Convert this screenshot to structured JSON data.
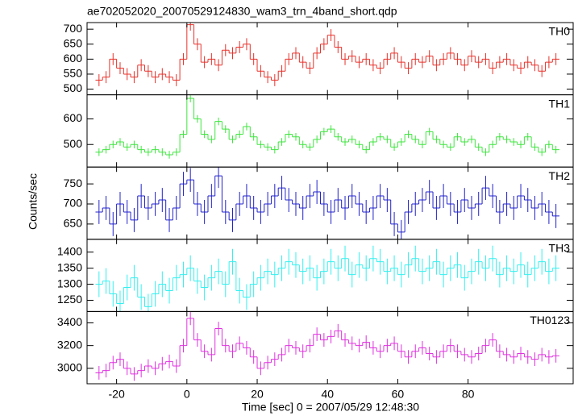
{
  "chart_data": {
    "type": "step",
    "title": "ae702052020_20070529124830_wam3_trn_4band_short.qdp",
    "xlabel": "Time [sec] 0 = 2007/05/29 12:48:30",
    "ylabel": "Counts/sec",
    "xlim": [
      -28.4,
      109.9
    ],
    "xticks": [
      -20,
      0,
      20,
      40,
      60,
      80
    ],
    "x": [
      -25,
      -23,
      -21,
      -19,
      -17,
      -15,
      -13,
      -11,
      -9,
      -7,
      -5,
      -3,
      -1,
      1,
      3,
      5,
      7,
      9,
      11,
      13,
      15,
      17,
      19,
      21,
      23,
      25,
      27,
      29,
      31,
      33,
      35,
      37,
      39,
      41,
      43,
      45,
      47,
      49,
      51,
      53,
      55,
      57,
      59,
      61,
      63,
      65,
      67,
      69,
      71,
      73,
      75,
      77,
      79,
      81,
      83,
      85,
      87,
      89,
      91,
      93,
      95,
      97,
      99,
      101,
      103,
      105
    ],
    "panels": [
      {
        "name": "TH0",
        "color": "#e8312a",
        "yerr": 20,
        "ylim": [
          481,
          722
        ],
        "yticks": [
          500,
          550,
          600,
          650,
          700
        ],
        "values": [
          530,
          540,
          600,
          570,
          550,
          540,
          580,
          560,
          540,
          550,
          540,
          530,
          600,
          715,
          650,
          590,
          600,
          580,
          630,
          620,
          640,
          650,
          600,
          560,
          540,
          530,
          560,
          600,
          620,
          590,
          570,
          620,
          650,
          680,
          640,
          600,
          610,
          590,
          600,
          580,
          570,
          600,
          620,
          590,
          570,
          600,
          590,
          610,
          580,
          600,
          620,
          600,
          580,
          610,
          590,
          600,
          570,
          590,
          600,
          580,
          570,
          590,
          580,
          560,
          590,
          600
        ]
      },
      {
        "name": "TH1",
        "color": "#3ee63e",
        "yerr": 15,
        "ylim": [
          412,
          694
        ],
        "yticks": [
          500,
          600
        ],
        "values": [
          470,
          480,
          500,
          510,
          490,
          500,
          480,
          470,
          480,
          470,
          460,
          470,
          540,
          680,
          600,
          540,
          520,
          590,
          560,
          520,
          540,
          570,
          530,
          500,
          490,
          480,
          510,
          540,
          530,
          500,
          490,
          520,
          550,
          560,
          530,
          510,
          520,
          500,
          480,
          510,
          530,
          520,
          490,
          510,
          540,
          520,
          500,
          550,
          520,
          500,
          490,
          530,
          510,
          520,
          490,
          470,
          500,
          530,
          520,
          510,
          500,
          530,
          490,
          470,
          500,
          480
        ]
      },
      {
        "name": "TH2",
        "color": "#2222cc",
        "yerr": 30,
        "ylim": [
          612,
          792
        ],
        "yticks": [
          650,
          700,
          750
        ],
        "values": [
          680,
          690,
          650,
          700,
          680,
          660,
          720,
          690,
          700,
          710,
          660,
          690,
          750,
          760,
          700,
          680,
          720,
          770,
          680,
          660,
          700,
          720,
          690,
          680,
          700,
          720,
          740,
          710,
          700,
          690,
          720,
          730,
          700,
          680,
          710,
          690,
          720,
          700,
          680,
          690,
          720,
          710,
          650,
          630,
          680,
          700,
          710,
          730,
          690,
          720,
          700,
          680,
          710,
          690,
          700,
          740,
          720,
          680,
          700,
          690,
          720,
          710,
          690,
          700,
          680,
          670
        ]
      },
      {
        "name": "TH3",
        "color": "#33f0f0",
        "yerr": 40,
        "ylim": [
          1215,
          1440
        ],
        "yticks": [
          1250,
          1300,
          1350,
          1400
        ],
        "values": [
          1300,
          1310,
          1270,
          1240,
          1290,
          1320,
          1260,
          1230,
          1270,
          1300,
          1280,
          1320,
          1330,
          1350,
          1310,
          1290,
          1320,
          1340,
          1300,
          1370,
          1280,
          1260,
          1300,
          1320,
          1340,
          1330,
          1350,
          1370,
          1360,
          1340,
          1350,
          1320,
          1340,
          1370,
          1350,
          1380,
          1330,
          1360,
          1350,
          1380,
          1370,
          1340,
          1350,
          1330,
          1360,
          1380,
          1340,
          1350,
          1370,
          1330,
          1350,
          1360,
          1320,
          1340,
          1370,
          1350,
          1380,
          1330,
          1350,
          1340,
          1360,
          1330,
          1350,
          1370,
          1340,
          1350
        ]
      },
      {
        "name": "TH0123",
        "color": "#e030e0",
        "yerr": 60,
        "ylim": [
          2864,
          3500
        ],
        "yticks": [
          3000,
          3200,
          3400
        ],
        "values": [
          2960,
          2980,
          3050,
          3080,
          3000,
          2950,
          2980,
          3020,
          3000,
          3040,
          3060,
          3020,
          3200,
          3440,
          3250,
          3150,
          3120,
          3350,
          3200,
          3150,
          3220,
          3180,
          3100,
          3000,
          3050,
          3080,
          3120,
          3200,
          3180,
          3150,
          3200,
          3300,
          3250,
          3280,
          3330,
          3250,
          3220,
          3200,
          3230,
          3180,
          3150,
          3200,
          3220,
          3150,
          3100,
          3150,
          3180,
          3130,
          3100,
          3150,
          3200,
          3150,
          3120,
          3100,
          3130,
          3200,
          3250,
          3150,
          3120,
          3100,
          3130,
          3100,
          3080,
          3120,
          3100,
          3110
        ]
      }
    ]
  }
}
